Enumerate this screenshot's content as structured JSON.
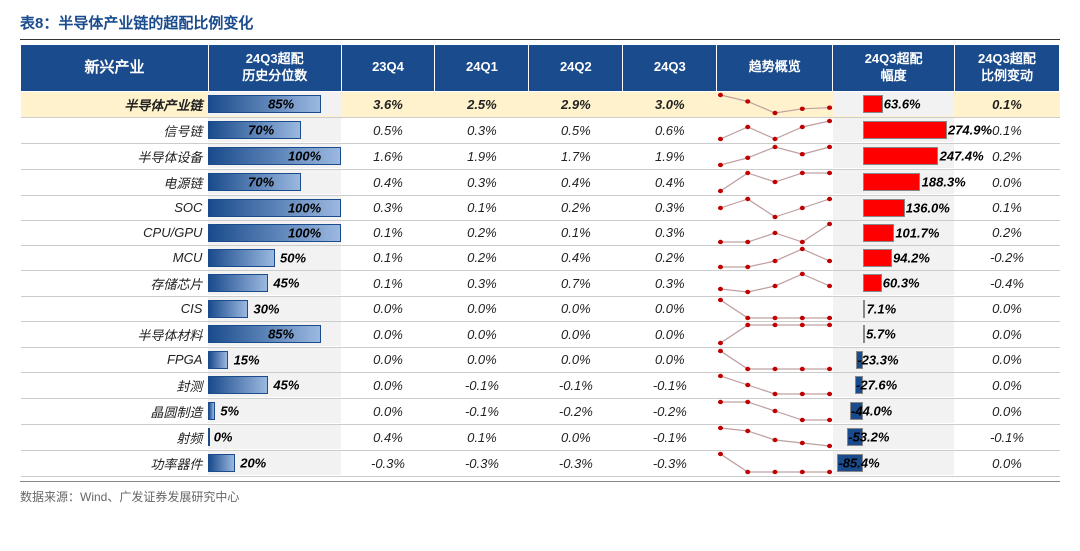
{
  "title": "表8：半导体产业链的超配比例变化",
  "source": "数据来源：Wind、广发证券发展研究中心",
  "headers": {
    "category": "新兴产业",
    "hist": "24Q3超配\n历史分位数",
    "q23q4": "23Q4",
    "q24q1": "24Q1",
    "q24q2": "24Q2",
    "q24q3": "24Q3",
    "trend": "趋势概览",
    "magnitude": "24Q3超配\n幅度",
    "change": "24Q3超配\n比例变动"
  },
  "colors": {
    "header_bg": "#1a4b8c",
    "header_fg": "#ffffff",
    "summary_bg": "#fff2cc",
    "hist_bg": "#f2f2f2",
    "hist_bar_start": "#1a4b8c",
    "hist_bar_end": "#9bb8e0",
    "mag_pos": "#ff0000",
    "mag_neg": "#1a4b8c",
    "spark_line": "#bfa0a0",
    "spark_dot": "#c00000",
    "grid": "#cccccc"
  },
  "magnitude_axis": {
    "min": -100,
    "max": 300
  },
  "summary": {
    "name": "半导体产业链",
    "hist": 85,
    "q": [
      3.6,
      2.5,
      2.9,
      3.0
    ],
    "spark": [
      4.2,
      3.6,
      2.5,
      2.9,
      3.0
    ],
    "mag": 63.6,
    "chg": 0.1
  },
  "rows": [
    {
      "name": "信号链",
      "hist": 70,
      "q": [
        0.5,
        0.3,
        0.5,
        0.6
      ],
      "spark": [
        0.3,
        0.5,
        0.3,
        0.5,
        0.6
      ],
      "mag": 274.9,
      "chg": 0.1
    },
    {
      "name": "半导体设备",
      "hist": 100,
      "q": [
        1.6,
        1.9,
        1.7,
        1.9
      ],
      "spark": [
        1.4,
        1.6,
        1.9,
        1.7,
        1.9
      ],
      "mag": 247.4,
      "chg": 0.2
    },
    {
      "name": "电源链",
      "hist": 70,
      "q": [
        0.4,
        0.3,
        0.4,
        0.4
      ],
      "spark": [
        0.2,
        0.4,
        0.3,
        0.4,
        0.4
      ],
      "mag": 188.3,
      "chg": 0.0
    },
    {
      "name": "SOC",
      "hist": 100,
      "q": [
        0.3,
        0.1,
        0.2,
        0.3
      ],
      "spark": [
        0.2,
        0.3,
        0.1,
        0.2,
        0.3
      ],
      "mag": 136.0,
      "chg": 0.1
    },
    {
      "name": "CPU/GPU",
      "hist": 100,
      "q": [
        0.1,
        0.2,
        0.1,
        0.3
      ],
      "spark": [
        0.1,
        0.1,
        0.2,
        0.1,
        0.3
      ],
      "mag": 101.7,
      "chg": 0.2
    },
    {
      "name": "MCU",
      "hist": 50,
      "q": [
        0.1,
        0.2,
        0.4,
        0.2
      ],
      "spark": [
        0.1,
        0.1,
        0.2,
        0.4,
        0.2
      ],
      "mag": 94.2,
      "chg": -0.2
    },
    {
      "name": "存储芯片",
      "hist": 45,
      "q": [
        0.1,
        0.3,
        0.7,
        0.3
      ],
      "spark": [
        0.2,
        0.1,
        0.3,
        0.7,
        0.3
      ],
      "mag": 60.3,
      "chg": -0.4
    },
    {
      "name": "CIS",
      "hist": 30,
      "q": [
        0.0,
        0.0,
        0.0,
        0.0
      ],
      "spark": [
        0.1,
        0.0,
        0.0,
        0.0,
        0.0
      ],
      "mag": 7.1,
      "chg": 0.0
    },
    {
      "name": "半导体材料",
      "hist": 85,
      "q": [
        0.0,
        0.0,
        0.0,
        0.0
      ],
      "spark": [
        -0.1,
        0.0,
        0.0,
        0.0,
        0.0
      ],
      "mag": 5.7,
      "chg": 0.0
    },
    {
      "name": "FPGA",
      "hist": 15,
      "q": [
        0.0,
        0.0,
        0.0,
        0.0
      ],
      "spark": [
        0.1,
        0.0,
        0.0,
        0.0,
        0.0
      ],
      "mag": -23.3,
      "chg": 0.0
    },
    {
      "name": "封测",
      "hist": 45,
      "q": [
        0.0,
        -0.1,
        -0.1,
        -0.1
      ],
      "spark": [
        0.1,
        0.0,
        -0.1,
        -0.1,
        -0.1
      ],
      "mag": -27.6,
      "chg": 0.0
    },
    {
      "name": "晶圆制造",
      "hist": 5,
      "q": [
        0.0,
        -0.1,
        -0.2,
        -0.2
      ],
      "spark": [
        0.0,
        0.0,
        -0.1,
        -0.2,
        -0.2
      ],
      "mag": -44.0,
      "chg": 0.0
    },
    {
      "name": "射频",
      "hist": 0,
      "q": [
        0.4,
        0.1,
        0.0,
        -0.1
      ],
      "spark": [
        0.5,
        0.4,
        0.1,
        0.0,
        -0.1
      ],
      "mag": -53.2,
      "chg": -0.1
    },
    {
      "name": "功率器件",
      "hist": 20,
      "q": [
        -0.3,
        -0.3,
        -0.3,
        -0.3
      ],
      "spark": [
        -0.1,
        -0.3,
        -0.3,
        -0.3,
        -0.3
      ],
      "mag": -85.4,
      "chg": 0.0
    }
  ]
}
